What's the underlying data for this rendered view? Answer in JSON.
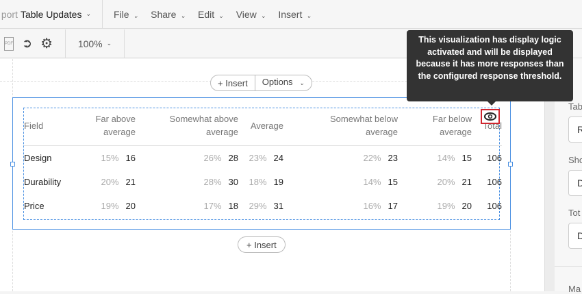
{
  "header": {
    "title_prefix": "port",
    "title": "Table Updates",
    "menu": [
      "File",
      "Share",
      "Edit",
      "View",
      "Insert"
    ]
  },
  "toolbar": {
    "zoom": "100%",
    "pdf_label": "PDF"
  },
  "canvas": {
    "insert_label": "Insert",
    "options_label": "Options",
    "insert_below_label": "Insert"
  },
  "table": {
    "headers": [
      "Field",
      "Far above average",
      "Somewhat above average",
      "Average",
      "Somewhat below average",
      "Far below average",
      "Total"
    ],
    "rows": [
      {
        "field": "Design",
        "cells": [
          [
            "15%",
            "16"
          ],
          [
            "26%",
            "28"
          ],
          [
            "23%",
            "24"
          ],
          [
            "22%",
            "23"
          ],
          [
            "14%",
            "15"
          ]
        ],
        "total": "106"
      },
      {
        "field": "Durability",
        "cells": [
          [
            "20%",
            "21"
          ],
          [
            "28%",
            "30"
          ],
          [
            "18%",
            "19"
          ],
          [
            "14%",
            "15"
          ],
          [
            "20%",
            "21"
          ]
        ],
        "total": "106"
      },
      {
        "field": "Price",
        "cells": [
          [
            "19%",
            "20"
          ],
          [
            "17%",
            "18"
          ],
          [
            "29%",
            "31"
          ],
          [
            "16%",
            "17"
          ],
          [
            "19%",
            "20"
          ]
        ],
        "total": "106"
      }
    ]
  },
  "tooltip": "This visualization has display logic activated and will be displayed because it has more responses than the configured response threshold.",
  "panel": {
    "labels": [
      "Tab",
      "Sho",
      "Tot",
      "Ma"
    ],
    "fields": [
      "R",
      "D",
      "D"
    ]
  },
  "colors": {
    "accent": "#4a90e2",
    "highlight": "#d0262f",
    "tooltip_bg": "#333333"
  }
}
